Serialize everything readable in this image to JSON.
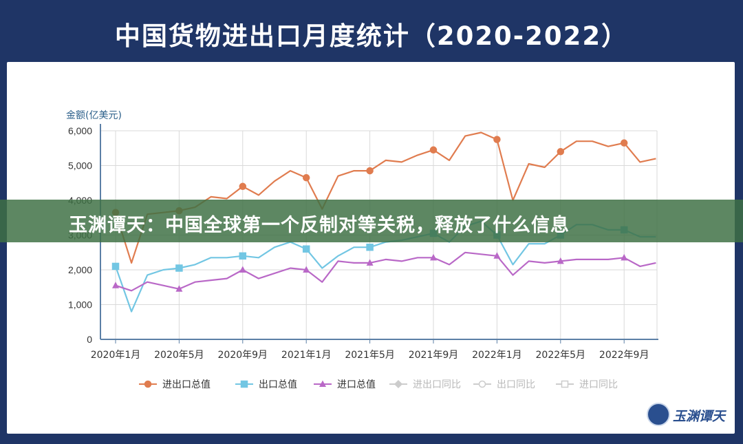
{
  "page": {
    "title": "中国货物进出口月度统计（2020-2022）",
    "banner": "玉渊谭天：中国全球第一个反制对等关税，释放了什么信息",
    "watermark": "玉渊谭天"
  },
  "chart_data": {
    "type": "line",
    "ylabel": "金额(亿美元)",
    "ylim": [
      0,
      6000
    ],
    "yticks": [
      {
        "value": 0,
        "label": "0"
      },
      {
        "value": 1000,
        "label": "1,000"
      },
      {
        "value": 2000,
        "label": "2,000"
      },
      {
        "value": 3000,
        "label": "3,000"
      },
      {
        "value": 4000,
        "label": "4,000"
      },
      {
        "value": 5000,
        "label": "5,000"
      },
      {
        "value": 6000,
        "label": "6,000"
      }
    ],
    "xticks": [
      {
        "index": 0,
        "label": "2020年1月"
      },
      {
        "index": 4,
        "label": "2020年5月"
      },
      {
        "index": 8,
        "label": "2020年9月"
      },
      {
        "index": 12,
        "label": "2021年1月"
      },
      {
        "index": 16,
        "label": "2021年5月"
      },
      {
        "index": 20,
        "label": "2021年9月"
      },
      {
        "index": 24,
        "label": "2022年1月"
      },
      {
        "index": 28,
        "label": "2022年5月"
      },
      {
        "index": 32,
        "label": "2022年9月"
      }
    ],
    "x": [
      "2020-01",
      "2020-02",
      "2020-03",
      "2020-04",
      "2020-05",
      "2020-06",
      "2020-07",
      "2020-08",
      "2020-09",
      "2020-10",
      "2020-11",
      "2020-12",
      "2021-01",
      "2021-02",
      "2021-03",
      "2021-04",
      "2021-05",
      "2021-06",
      "2021-07",
      "2021-08",
      "2021-09",
      "2021-10",
      "2021-11",
      "2021-12",
      "2022-01",
      "2022-02",
      "2022-03",
      "2022-04",
      "2022-05",
      "2022-06",
      "2022-07",
      "2022-08",
      "2022-09",
      "2022-10",
      "2022-11"
    ],
    "series": [
      {
        "name": "进出口总值",
        "color": "#e07c4f",
        "marker": "circle",
        "values": [
          3650,
          2200,
          3600,
          3650,
          3700,
          3800,
          4100,
          4050,
          4400,
          4150,
          4550,
          4850,
          4650,
          3750,
          4700,
          4850,
          4850,
          5150,
          5100,
          5300,
          5450,
          5150,
          5850,
          5950,
          5750,
          4000,
          5050,
          4950,
          5400,
          5700,
          5700,
          5550,
          5650,
          5100,
          5200
        ]
      },
      {
        "name": "出口总值",
        "color": "#72c6e3",
        "marker": "square",
        "values": [
          2100,
          800,
          1850,
          2000,
          2050,
          2150,
          2350,
          2350,
          2400,
          2350,
          2650,
          2800,
          2600,
          2050,
          2400,
          2650,
          2650,
          2800,
          2850,
          2950,
          3050,
          2800,
          3250,
          3400,
          3000,
          2150,
          2750,
          2750,
          3000,
          3300,
          3300,
          3150,
          3150,
          2950,
          2950
        ]
      },
      {
        "name": "进口总值",
        "color": "#b968c7",
        "marker": "triangle",
        "values": [
          1550,
          1400,
          1650,
          1550,
          1450,
          1650,
          1700,
          1750,
          2000,
          1750,
          1900,
          2050,
          2000,
          1650,
          2250,
          2200,
          2200,
          2300,
          2250,
          2350,
          2350,
          2150,
          2500,
          2450,
          2400,
          1850,
          2250,
          2200,
          2250,
          2300,
          2300,
          2300,
          2350,
          2100,
          2200
        ]
      }
    ],
    "legend": [
      {
        "label": "进出口总值",
        "color": "#e07c4f",
        "marker": "circle",
        "active": true
      },
      {
        "label": "出口总值",
        "color": "#72c6e3",
        "marker": "square",
        "active": true
      },
      {
        "label": "进口总值",
        "color": "#b968c7",
        "marker": "triangle",
        "active": true
      },
      {
        "label": "进出口同比",
        "color": "#cccccc",
        "marker": "diamond",
        "active": false
      },
      {
        "label": "出口同比",
        "color": "#cccccc",
        "marker": "circle-open",
        "active": false
      },
      {
        "label": "进口同比",
        "color": "#cccccc",
        "marker": "square-open",
        "active": false
      }
    ],
    "legend_position": "bottom",
    "grid": true
  }
}
